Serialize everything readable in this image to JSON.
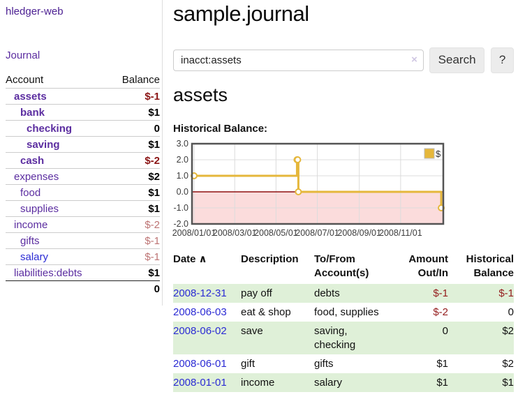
{
  "app": {
    "brand": "hledger-web",
    "nav_journal": "Journal"
  },
  "header": {
    "title": "sample.journal"
  },
  "search": {
    "value": "inacct:assets",
    "clear_icon": "×",
    "button_label": "Search",
    "help_label": "?"
  },
  "main": {
    "heading": "assets",
    "chart_label": "Historical Balance:"
  },
  "sidebar": {
    "account_header": "Account",
    "balance_header": "Balance",
    "accounts": [
      {
        "name": "assets",
        "indent": 0,
        "bold": true,
        "blue": false,
        "balance": "$-1",
        "balance_style": "neg-strong"
      },
      {
        "name": "bank",
        "indent": 1,
        "bold": true,
        "blue": false,
        "balance": "$1",
        "balance_style": "pos"
      },
      {
        "name": "checking",
        "indent": 2,
        "bold": true,
        "blue": false,
        "balance": "0",
        "balance_style": "pos"
      },
      {
        "name": "saving",
        "indent": 2,
        "bold": true,
        "blue": false,
        "balance": "$1",
        "balance_style": "pos"
      },
      {
        "name": "cash",
        "indent": 1,
        "bold": true,
        "blue": false,
        "balance": "$-2",
        "balance_style": "neg-strong"
      },
      {
        "name": "expenses",
        "indent": 0,
        "bold": false,
        "blue": false,
        "balance": "$2",
        "balance_style": "pos"
      },
      {
        "name": "food",
        "indent": 1,
        "bold": false,
        "blue": false,
        "balance": "$1",
        "balance_style": "pos"
      },
      {
        "name": "supplies",
        "indent": 1,
        "bold": false,
        "blue": false,
        "balance": "$1",
        "balance_style": "pos"
      },
      {
        "name": "income",
        "indent": 0,
        "bold": false,
        "blue": false,
        "balance": "$-2",
        "balance_style": "neg-soft"
      },
      {
        "name": "gifts",
        "indent": 1,
        "bold": false,
        "blue": false,
        "balance": "$-1",
        "balance_style": "neg-soft"
      },
      {
        "name": "salary",
        "indent": 1,
        "bold": false,
        "blue": true,
        "balance": "$-1",
        "balance_style": "neg-soft"
      },
      {
        "name": "liabilities:debts",
        "indent": 0,
        "bold": false,
        "blue": false,
        "balance": "$1",
        "balance_style": "pos"
      }
    ],
    "total": "0"
  },
  "chart_data": {
    "type": "line",
    "title": "Historical Balance",
    "step": true,
    "legend": {
      "label": "$",
      "position": "top-right"
    },
    "series": [
      {
        "name": "$",
        "color": "#e5b73b",
        "points": [
          [
            "2008-01-01",
            1
          ],
          [
            "2008-06-01",
            2
          ],
          [
            "2008-06-02",
            2
          ],
          [
            "2008-06-03",
            0
          ],
          [
            "2008-12-31",
            -1
          ]
        ]
      }
    ],
    "y_ticks": [
      3.0,
      2.0,
      1.0,
      0.0,
      -1.0,
      -2.0
    ],
    "x_ticks": [
      {
        "label": "2008/01/01",
        "day": 0
      },
      {
        "label": "2008/03/01",
        "day": 60
      },
      {
        "label": "2008/05/01",
        "day": 121
      },
      {
        "label": "2008/07/01",
        "day": 182
      },
      {
        "label": "2008/09/01",
        "day": 244
      },
      {
        "label": "2008/11/01",
        "day": 305
      }
    ],
    "ylim": [
      -2,
      3
    ],
    "grid": true,
    "colors": {
      "grid_line": "#dcdcdc",
      "border": "#545454",
      "negative_region": "#fbdcdc",
      "zero_line": "#8f0f0f",
      "tick_text": "#3c3c3c"
    }
  },
  "register": {
    "headers": {
      "date": "Date",
      "sort_icon": "∧",
      "description": "Description",
      "accounts": "To/From Account(s)",
      "amount": "Amount Out/In",
      "balance": "Historical Balance"
    },
    "rows": [
      {
        "date": "2008-12-31",
        "description": "pay off",
        "accounts": "debts",
        "amount": "$-1",
        "amount_neg": true,
        "balance": "$-1",
        "balance_neg": true,
        "shaded": true
      },
      {
        "date": "2008-06-03",
        "description": "eat & shop",
        "accounts": "food, supplies",
        "amount": "$-2",
        "amount_neg": true,
        "balance": "0",
        "balance_neg": false,
        "shaded": false
      },
      {
        "date": "2008-06-02",
        "description": "save",
        "accounts": "saving,\nchecking",
        "amount": "0",
        "amount_neg": false,
        "balance": "$2",
        "balance_neg": false,
        "shaded": true
      },
      {
        "date": "2008-06-01",
        "description": "gift",
        "accounts": "gifts",
        "amount": "$1",
        "amount_neg": false,
        "balance": "$2",
        "balance_neg": false,
        "shaded": false
      },
      {
        "date": "2008-01-01",
        "description": "income",
        "accounts": "salary",
        "amount": "$1",
        "amount_neg": false,
        "balance": "$1",
        "balance_neg": false,
        "shaded": true
      }
    ]
  }
}
